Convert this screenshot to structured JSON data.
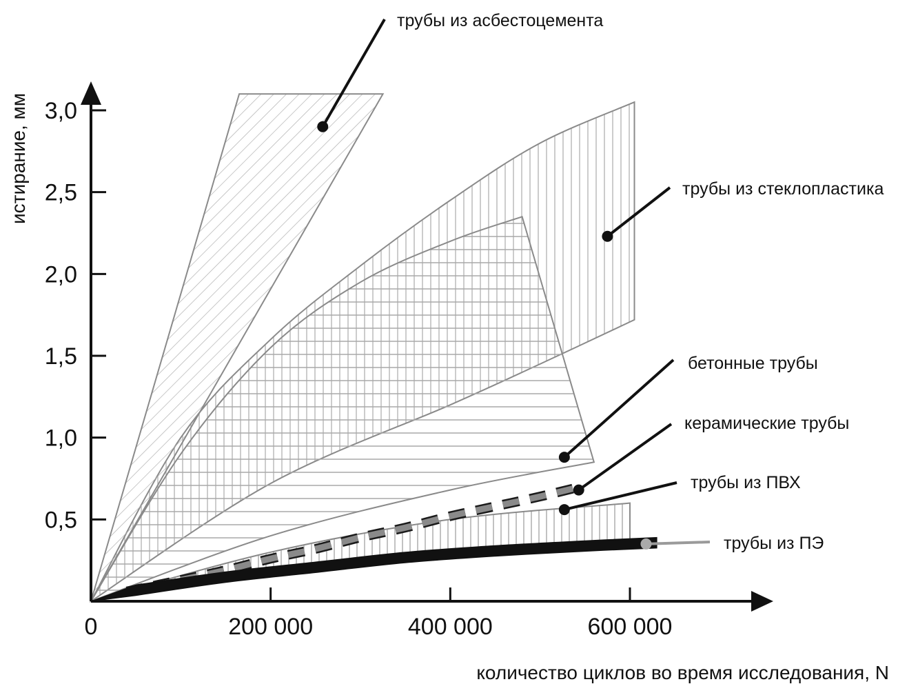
{
  "chart_data": {
    "type": "area",
    "title": "",
    "xlabel": "количество циклов во время исследования, N",
    "ylabel": "истирание, мм",
    "xlim": [
      0,
      700000
    ],
    "ylim": [
      0,
      3.2
    ],
    "x_ticks": [
      {
        "value": 0,
        "label": "0"
      },
      {
        "value": 200000,
        "label": "200 000"
      },
      {
        "value": 400000,
        "label": "400 000"
      },
      {
        "value": 600000,
        "label": "600 000"
      }
    ],
    "y_ticks": [
      {
        "value": 0.5,
        "label": "0,5"
      },
      {
        "value": 1.0,
        "label": "1,0"
      },
      {
        "value": 1.5,
        "label": "1,5"
      },
      {
        "value": 2.0,
        "label": "2,0"
      },
      {
        "value": 2.5,
        "label": "2,5"
      },
      {
        "value": 3.0,
        "label": "3,0"
      }
    ],
    "series": [
      {
        "name": "трубы из асбестоцемента",
        "color": "#8a8a8a",
        "pattern": "diagonal",
        "polygon": [
          [
            0,
            0
          ],
          [
            165000,
            3.1
          ],
          [
            325000,
            3.1
          ],
          [
            0,
            0
          ]
        ]
      },
      {
        "name": "трубы из стеклопластика",
        "color": "#8a8a8a",
        "pattern": "vertical",
        "upper": [
          [
            0,
            0
          ],
          [
            100000,
            1.0
          ],
          [
            200000,
            1.6
          ],
          [
            300000,
            2.05
          ],
          [
            400000,
            2.45
          ],
          [
            500000,
            2.8
          ],
          [
            605000,
            3.05
          ]
        ],
        "lower": [
          [
            0,
            0
          ],
          [
            200000,
            0.72
          ],
          [
            400000,
            1.2
          ],
          [
            500000,
            1.45
          ],
          [
            605000,
            1.72
          ]
        ]
      },
      {
        "name": "бетонные трубы",
        "color": "#8a8a8a",
        "pattern": "horizontal",
        "upper": [
          [
            0,
            0
          ],
          [
            100000,
            0.9
          ],
          [
            200000,
            1.55
          ],
          [
            300000,
            1.95
          ],
          [
            400000,
            2.2
          ],
          [
            480000,
            2.35
          ]
        ],
        "lower": [
          [
            0,
            0
          ],
          [
            200000,
            0.4
          ],
          [
            400000,
            0.68
          ],
          [
            560000,
            0.85
          ]
        ]
      },
      {
        "name": "керамические трубы",
        "color": "#8a8a8a",
        "pattern": "dashed-band",
        "x": [
          40000,
          100000,
          150000,
          200000,
          250000,
          300000,
          350000,
          400000,
          450000,
          500000,
          545000
        ],
        "values": [
          0.06,
          0.13,
          0.19,
          0.26,
          0.32,
          0.39,
          0.45,
          0.52,
          0.58,
          0.64,
          0.7
        ]
      },
      {
        "name": "трубы из ПВХ",
        "color": "#8a8a8a",
        "pattern": "vertical",
        "upper": [
          [
            0,
            0
          ],
          [
            200000,
            0.3
          ],
          [
            400000,
            0.5
          ],
          [
            600000,
            0.6
          ]
        ],
        "lower": [
          [
            0,
            0
          ],
          [
            200000,
            0.16
          ],
          [
            400000,
            0.3
          ],
          [
            600000,
            0.38
          ]
        ]
      },
      {
        "name": "трубы из ПЭ",
        "color": "#111111",
        "pattern": "solid",
        "x": [
          50000,
          150000,
          250000,
          350000,
          450000,
          550000,
          630000
        ],
        "values": [
          0.07,
          0.15,
          0.21,
          0.27,
          0.31,
          0.34,
          0.36
        ]
      }
    ],
    "annotations": [
      {
        "text": "трубы из асбестоцемента",
        "point": [
          258000,
          2.9
        ],
        "dot_color": "#111111",
        "leader_color": "#111111"
      },
      {
        "text": "трубы из стеклопластика",
        "point": [
          575000,
          2.23
        ],
        "dot_color": "#111111",
        "leader_color": "#111111"
      },
      {
        "text": "бетонные трубы",
        "point": [
          527000,
          0.88
        ],
        "dot_color": "#111111",
        "leader_color": "#111111"
      },
      {
        "text": "керамические трубы",
        "point": [
          543000,
          0.68
        ],
        "dot_color": "#111111",
        "leader_color": "#111111"
      },
      {
        "text": "трубы из ПВХ",
        "point": [
          527000,
          0.56
        ],
        "dot_color": "#111111",
        "leader_color": "#111111"
      },
      {
        "text": "трубы из ПЭ",
        "point": [
          618000,
          0.35
        ],
        "dot_color": "#aaaaaa",
        "leader_color": "#9a9a9a"
      }
    ],
    "grid": false,
    "legend": "callouts-right"
  }
}
